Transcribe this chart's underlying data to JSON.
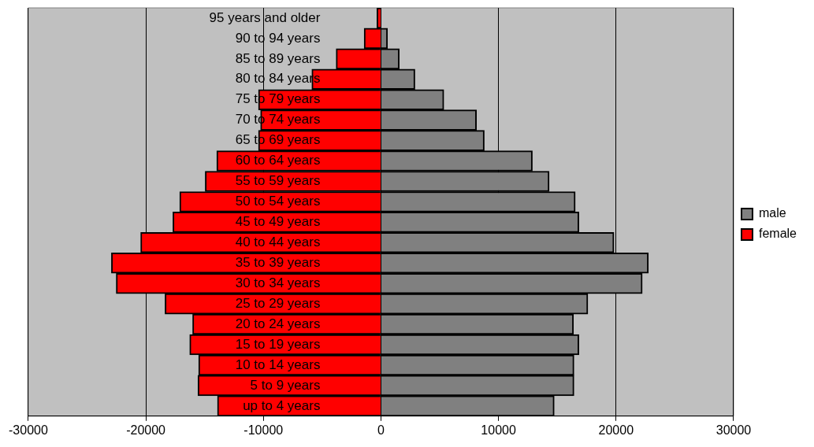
{
  "chart_data": {
    "type": "bar",
    "orientation": "horizontal",
    "stacked": true,
    "categories": [
      "95 years and older",
      "90 to 94 years",
      "85 to 89 years",
      "80 to 84 years",
      "75 to 79 years",
      "70 to 74 years",
      "65 to 69 years",
      "60 to 64 years",
      "55 to 59 years",
      "50 to 54 years",
      "45 to 49 years",
      "40 to 44 years",
      "35 to 39 years",
      "30 to 34 years",
      "25 to 29 years",
      "20 to 24 years",
      "15 to 19 years",
      "10 to 14 years",
      "5 to 9 years",
      "up to 4 years"
    ],
    "series": [
      {
        "name": "male",
        "color": "#808080",
        "values": [
          null,
          560,
          1560,
          2890,
          5350,
          8130,
          8790,
          12880,
          14310,
          16530,
          16840,
          19820,
          22750,
          22230,
          17600,
          16380,
          16840,
          16420,
          16420,
          14740
        ]
      },
      {
        "name": "female",
        "color": "#ff0000",
        "values": [
          -350,
          -1430,
          -3810,
          -5880,
          -10420,
          -10240,
          -10420,
          -13970,
          -14950,
          -17120,
          -17700,
          -20440,
          -22930,
          -22520,
          -18370,
          -16020,
          -16270,
          -15510,
          -15570,
          -13910
        ]
      }
    ],
    "xlim": [
      -30000,
      30000
    ],
    "xticks": [
      -30000,
      -20000,
      -10000,
      0,
      10000,
      20000,
      30000
    ],
    "grid": "x",
    "legend": "right"
  }
}
